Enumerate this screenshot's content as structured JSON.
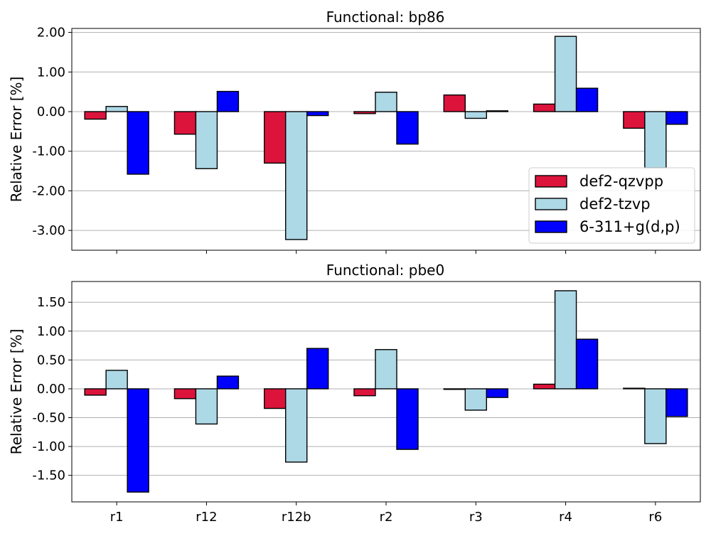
{
  "chart_data": [
    {
      "type": "bar",
      "title": "Functional: bp86",
      "xlabel": "",
      "ylabel": "Relative Error [%]",
      "categories": [
        "r1",
        "r12",
        "r12b",
        "r2",
        "r3",
        "r4",
        "r6"
      ],
      "series": [
        {
          "name": "def2-qzvpp",
          "color": "#dc143c",
          "values": [
            -0.19,
            -0.57,
            -1.3,
            -0.05,
            0.42,
            0.19,
            -0.42
          ]
        },
        {
          "name": "def2-tzvp",
          "color": "#add8e6",
          "values": [
            0.13,
            -1.44,
            -3.23,
            0.49,
            -0.17,
            1.9,
            -1.42
          ]
        },
        {
          "name": "6-311+g(d,p)",
          "color": "#0000ff",
          "values": [
            -1.58,
            0.51,
            -0.1,
            -0.82,
            0.02,
            0.59,
            -0.32
          ]
        }
      ],
      "yticks": [
        "2.00",
        "1.00",
        "0.00",
        "-1.00",
        "-2.00",
        "-3.00"
      ],
      "ylim": [
        -3.5,
        2.1
      ],
      "grid": "horizontal",
      "legend": "lower right",
      "show_xticklabels": false
    },
    {
      "type": "bar",
      "title": "Functional: pbe0",
      "xlabel": "",
      "ylabel": "Relative Error [%]",
      "categories": [
        "r1",
        "r12",
        "r12b",
        "r2",
        "r3",
        "r4",
        "r6"
      ],
      "series": [
        {
          "name": "def2-qzvpp",
          "color": "#dc143c",
          "values": [
            -0.11,
            -0.17,
            -0.34,
            -0.12,
            -0.01,
            0.08,
            0.01
          ]
        },
        {
          "name": "def2-tzvp",
          "color": "#add8e6",
          "values": [
            0.32,
            -0.61,
            -1.27,
            0.68,
            -0.37,
            1.7,
            -0.95
          ]
        },
        {
          "name": "6-311+g(d,p)",
          "color": "#0000ff",
          "values": [
            -1.79,
            0.22,
            0.7,
            -1.05,
            -0.15,
            0.86,
            -0.48
          ]
        }
      ],
      "yticks": [
        "1.50",
        "1.00",
        "0.50",
        "0.00",
        "-0.50",
        "-1.00",
        "-1.50"
      ],
      "ylim": [
        -1.96,
        1.86
      ],
      "grid": "horizontal",
      "show_xticklabels": true
    }
  ]
}
